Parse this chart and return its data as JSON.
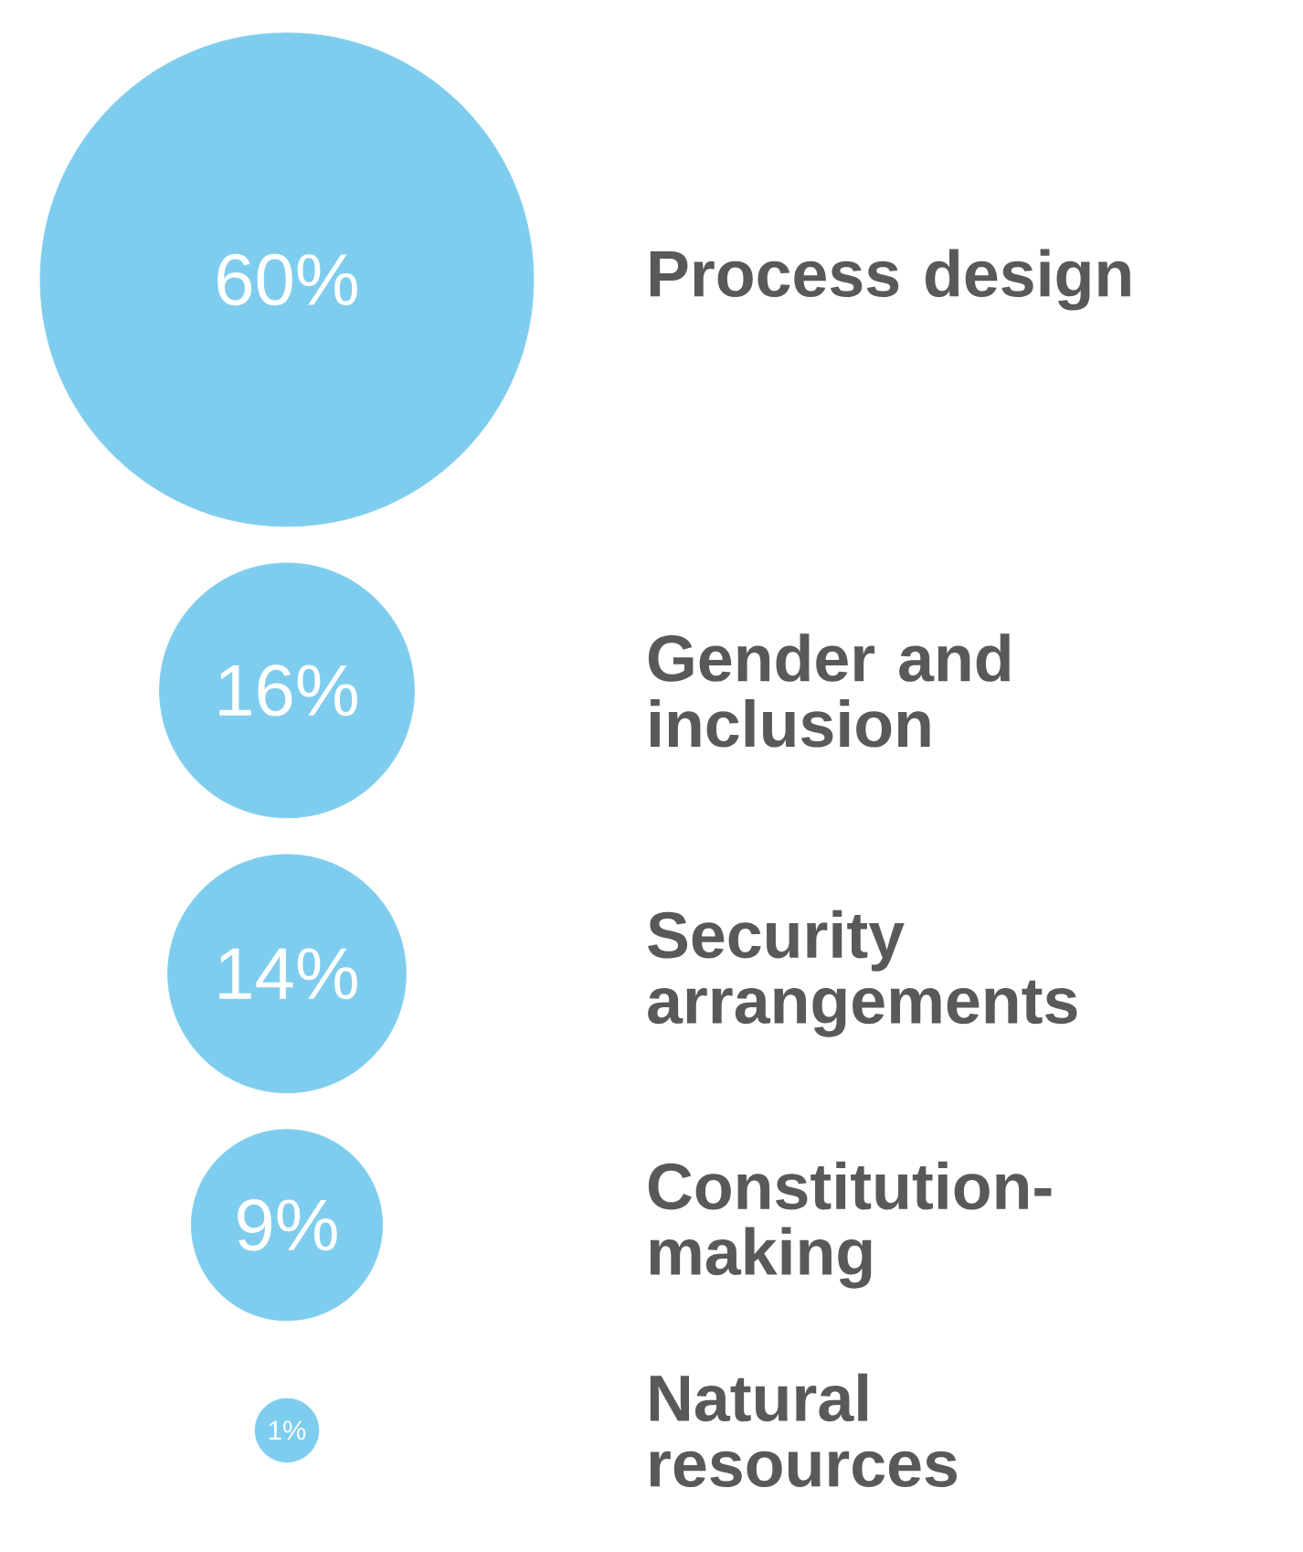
{
  "chart_data": {
    "type": "other",
    "categories": [
      "Process design",
      "Gender and inclusion",
      "Security arrangements",
      "Constitution-making",
      "Natural resources"
    ],
    "values": [
      60,
      16,
      14,
      9,
      1
    ],
    "value_labels": [
      "60%",
      "16%",
      "14%",
      "9%",
      "1%"
    ],
    "color": "#7fcdee"
  }
}
